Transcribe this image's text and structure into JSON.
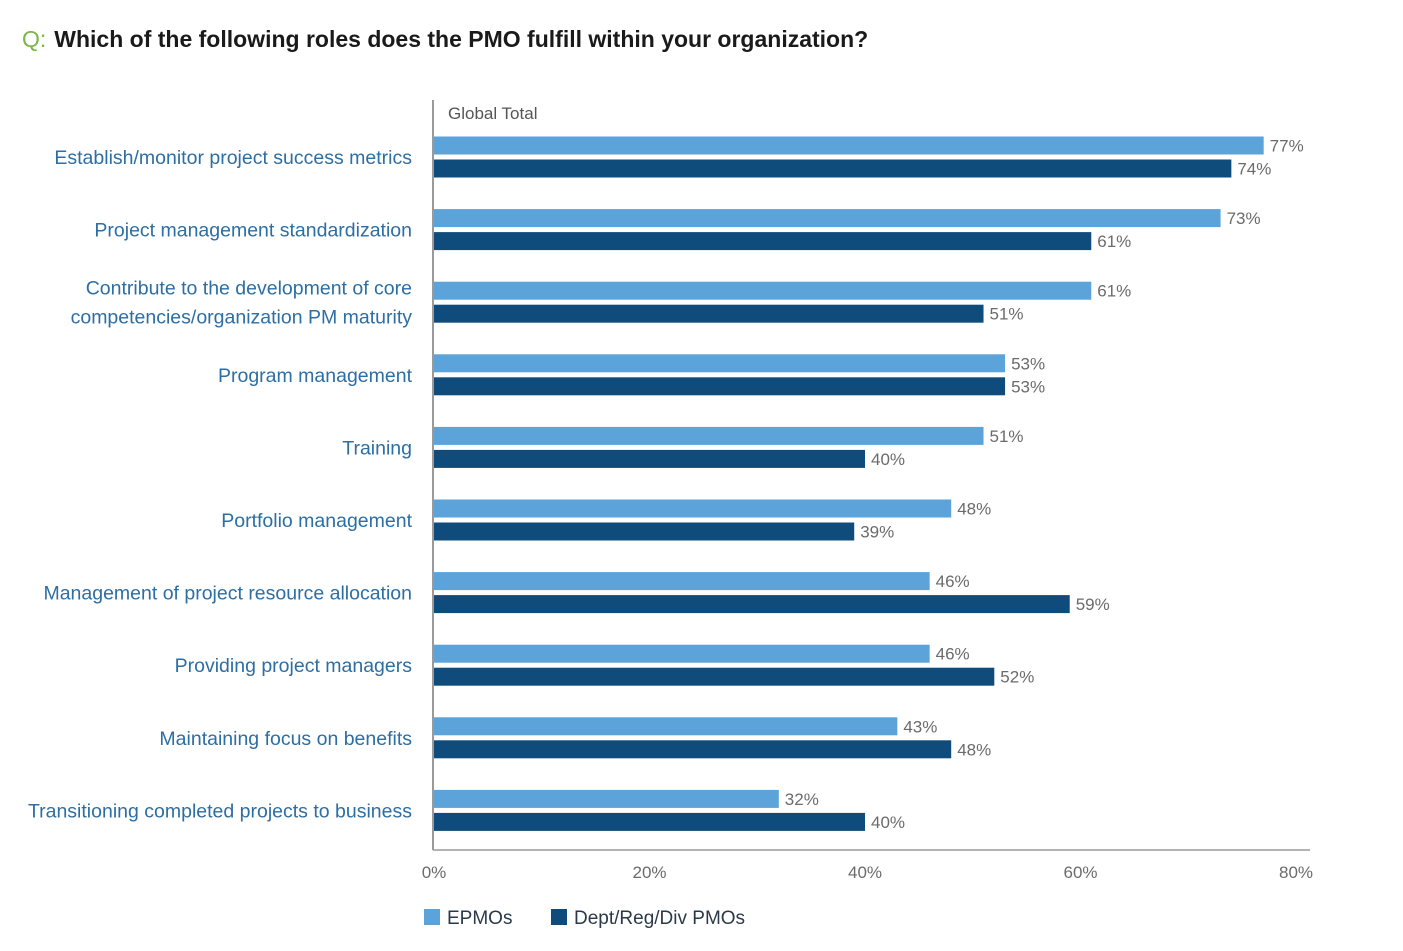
{
  "question": {
    "prefix": "Q:",
    "text": "Which of the following roles does the PMO fulfill within your organization?"
  },
  "chart_data": {
    "type": "bar",
    "orientation": "horizontal",
    "panel_label": "Global Total",
    "categories": [
      [
        "Establish/monitor project success metrics"
      ],
      [
        "Project management standardization"
      ],
      [
        "Contribute to the development of core",
        "competencies/organization PM maturity"
      ],
      [
        "Program management"
      ],
      [
        "Training"
      ],
      [
        "Portfolio management"
      ],
      [
        "Management of project resource allocation"
      ],
      [
        "Providing project managers"
      ],
      [
        "Maintaining focus on benefits"
      ],
      [
        "Transitioning completed projects to business"
      ]
    ],
    "series": [
      {
        "name": "EPMOs",
        "color": "#5ba3d9",
        "values": [
          77,
          73,
          61,
          53,
          51,
          48,
          46,
          46,
          43,
          32
        ]
      },
      {
        "name": "Dept/Reg/Div PMOs",
        "color": "#0f4c7c",
        "values": [
          74,
          61,
          51,
          53,
          40,
          39,
          59,
          52,
          48,
          40
        ]
      }
    ],
    "value_suffix": "%",
    "xlim": [
      0,
      80
    ],
    "x_ticks": [
      "0%",
      "20%",
      "40%",
      "60%",
      "80%"
    ],
    "grid": false,
    "legend_position": "bottom-left"
  }
}
